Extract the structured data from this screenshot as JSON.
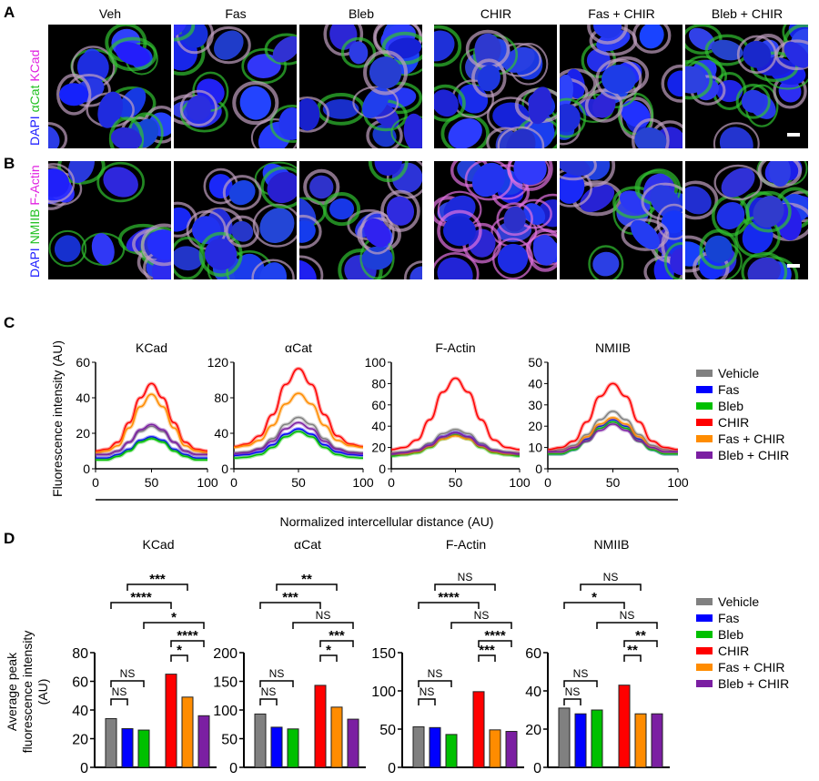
{
  "panels": {
    "a": "A",
    "b": "B",
    "c": "C",
    "d": "D"
  },
  "conditions": [
    "Veh",
    "Fas",
    "Bleb",
    "CHIR",
    "Fas + CHIR",
    "Bleb + CHIR"
  ],
  "row_a_label": [
    {
      "text": "DAPI",
      "color": "#2020ff"
    },
    {
      "text": " αCat",
      "color": "#20c020"
    },
    {
      "text": " KCad",
      "color": "#e020e0"
    }
  ],
  "row_b_label": [
    {
      "text": "DAPI",
      "color": "#2020ff"
    },
    {
      "text": " NMIIB",
      "color": "#20c020"
    },
    {
      "text": " F-Actin",
      "color": "#e020e0"
    }
  ],
  "legend": [
    {
      "name": "Vehicle",
      "color": "#808080"
    },
    {
      "name": "Fas",
      "color": "#0000ff"
    },
    {
      "name": "Bleb",
      "color": "#00c000"
    },
    {
      "name": "CHIR",
      "color": "#ff0000"
    },
    {
      "name": "Fas + CHIR",
      "color": "#ff8c00"
    },
    {
      "name": "Bleb + CHIR",
      "color": "#7b1fa2"
    }
  ],
  "chart_data": [
    {
      "type": "line",
      "panel": "C",
      "title": "KCad",
      "ylabel": "Fluorescence intensity (AU)",
      "xlabel": "Normalized intercellular distance (AU)",
      "xlim": [
        0,
        100
      ],
      "ylim": [
        0,
        60
      ],
      "xticks": [
        0,
        50,
        100
      ],
      "yticks": [
        0,
        20,
        40,
        60
      ],
      "x": [
        0,
        10,
        20,
        30,
        40,
        50,
        60,
        70,
        80,
        90,
        100
      ],
      "series": [
        {
          "name": "Vehicle",
          "values": [
            8,
            8,
            10,
            15,
            21,
            24,
            21,
            15,
            10,
            8,
            8
          ]
        },
        {
          "name": "Fas",
          "values": [
            6,
            6,
            8,
            11,
            16,
            18,
            16,
            11,
            8,
            6,
            6
          ]
        },
        {
          "name": "Bleb",
          "values": [
            5,
            5,
            7,
            10,
            15,
            17,
            15,
            10,
            7,
            5,
            5
          ]
        },
        {
          "name": "CHIR",
          "values": [
            10,
            11,
            15,
            26,
            40,
            48,
            40,
            26,
            15,
            11,
            10
          ]
        },
        {
          "name": "Fas + CHIR",
          "values": [
            9,
            10,
            13,
            23,
            35,
            42,
            35,
            23,
            13,
            10,
            9
          ]
        },
        {
          "name": "Bleb + CHIR",
          "values": [
            8,
            8,
            10,
            15,
            22,
            25,
            22,
            15,
            10,
            8,
            8
          ]
        }
      ]
    },
    {
      "type": "line",
      "panel": "C",
      "title": "αCat",
      "xlim": [
        0,
        100
      ],
      "ylim": [
        0,
        120
      ],
      "xticks": [
        0,
        50,
        100
      ],
      "yticks": [
        0,
        40,
        80,
        120
      ],
      "x": [
        0,
        10,
        20,
        30,
        40,
        50,
        60,
        70,
        80,
        90,
        100
      ],
      "series": [
        {
          "name": "Vehicle",
          "values": [
            18,
            19,
            23,
            34,
            50,
            58,
            50,
            34,
            23,
            19,
            18
          ]
        },
        {
          "name": "Fas",
          "values": [
            15,
            16,
            19,
            27,
            39,
            45,
            39,
            27,
            19,
            16,
            15
          ]
        },
        {
          "name": "Bleb",
          "values": [
            12,
            13,
            16,
            24,
            36,
            42,
            36,
            24,
            16,
            13,
            12
          ]
        },
        {
          "name": "CHIR",
          "values": [
            25,
            28,
            37,
            61,
            95,
            113,
            95,
            61,
            37,
            28,
            25
          ]
        },
        {
          "name": "Fas + CHIR",
          "values": [
            24,
            26,
            32,
            49,
            73,
            85,
            73,
            49,
            32,
            26,
            24
          ]
        },
        {
          "name": "Bleb + CHIR",
          "values": [
            17,
            18,
            22,
            31,
            45,
            52,
            45,
            31,
            22,
            18,
            17
          ]
        }
      ]
    },
    {
      "type": "line",
      "panel": "C",
      "title": "F-Actin",
      "xlim": [
        0,
        100
      ],
      "ylim": [
        0,
        100
      ],
      "xticks": [
        0,
        50,
        100
      ],
      "yticks": [
        0,
        20,
        40,
        60,
        80,
        100
      ],
      "x": [
        0,
        10,
        20,
        30,
        40,
        50,
        60,
        70,
        80,
        90,
        100
      ],
      "series": [
        {
          "name": "Vehicle",
          "values": [
            15,
            16,
            18,
            24,
            33,
            37,
            33,
            24,
            18,
            16,
            15
          ]
        },
        {
          "name": "Fas",
          "values": [
            13,
            14,
            16,
            22,
            30,
            34,
            30,
            22,
            16,
            14,
            13
          ]
        },
        {
          "name": "Bleb",
          "values": [
            12,
            13,
            15,
            20,
            28,
            32,
            28,
            20,
            15,
            13,
            12
          ]
        },
        {
          "name": "CHIR",
          "values": [
            18,
            20,
            27,
            46,
            72,
            85,
            72,
            46,
            27,
            20,
            18
          ]
        },
        {
          "name": "Fas + CHIR",
          "values": [
            14,
            14,
            16,
            21,
            28,
            31,
            28,
            21,
            16,
            14,
            14
          ]
        },
        {
          "name": "Bleb + CHIR",
          "values": [
            14,
            15,
            17,
            22,
            30,
            34,
            30,
            22,
            17,
            15,
            14
          ]
        }
      ]
    },
    {
      "type": "line",
      "panel": "C",
      "title": "NMIIB",
      "xlim": [
        0,
        100
      ],
      "ylim": [
        0,
        50
      ],
      "xticks": [
        0,
        50,
        100
      ],
      "yticks": [
        0,
        10,
        20,
        30,
        40,
        50
      ],
      "x": [
        0,
        10,
        20,
        30,
        40,
        50,
        60,
        70,
        80,
        90,
        100
      ],
      "series": [
        {
          "name": "Vehicle",
          "values": [
            8,
            9,
            11,
            16,
            23,
            27,
            23,
            16,
            11,
            9,
            8
          ]
        },
        {
          "name": "Fas",
          "values": [
            7,
            7,
            9,
            14,
            20,
            23,
            20,
            14,
            9,
            7,
            7
          ]
        },
        {
          "name": "Bleb",
          "values": [
            7,
            7,
            9,
            13,
            19,
            22,
            19,
            13,
            9,
            7,
            7
          ]
        },
        {
          "name": "CHIR",
          "values": [
            9,
            10,
            13,
            22,
            34,
            40,
            34,
            22,
            13,
            10,
            9
          ]
        },
        {
          "name": "Fas + CHIR",
          "values": [
            8,
            8,
            10,
            15,
            21,
            24,
            21,
            15,
            10,
            8,
            8
          ]
        },
        {
          "name": "Bleb + CHIR",
          "values": [
            8,
            8,
            10,
            13,
            18,
            21,
            18,
            13,
            10,
            8,
            8
          ]
        }
      ]
    },
    {
      "type": "bar",
      "panel": "D",
      "title": "KCad",
      "ylabel": "Average peak fluorescence intensity (AU)",
      "ylim": [
        0,
        80
      ],
      "yticks": [
        0,
        20,
        40,
        60,
        80
      ],
      "categories": [
        "Vehicle",
        "Fas",
        "Bleb",
        "CHIR",
        "Fas + CHIR",
        "Bleb + CHIR"
      ],
      "values": [
        34,
        27,
        26,
        65,
        49,
        36
      ],
      "comparisons": [
        {
          "pair": [
            1,
            4
          ],
          "label": "***"
        },
        {
          "pair": [
            0,
            3
          ],
          "label": "****"
        },
        {
          "pair": [
            2,
            5
          ],
          "label": "*"
        },
        {
          "pair": [
            3,
            5
          ],
          "label": "****"
        },
        {
          "pair": [
            3,
            4
          ],
          "label": "*"
        },
        {
          "pair": [
            0,
            2
          ],
          "label": "NS"
        },
        {
          "pair": [
            0,
            1
          ],
          "label": "NS"
        }
      ]
    },
    {
      "type": "bar",
      "panel": "D",
      "title": "αCat",
      "ylim": [
        0,
        200
      ],
      "yticks": [
        0,
        50,
        100,
        150,
        200
      ],
      "categories": [
        "Vehicle",
        "Fas",
        "Bleb",
        "CHIR",
        "Fas + CHIR",
        "Bleb + CHIR"
      ],
      "values": [
        93,
        70,
        67,
        143,
        105,
        84
      ],
      "comparisons": [
        {
          "pair": [
            1,
            4
          ],
          "label": "**"
        },
        {
          "pair": [
            0,
            3
          ],
          "label": "***"
        },
        {
          "pair": [
            2,
            5
          ],
          "label": "NS"
        },
        {
          "pair": [
            3,
            5
          ],
          "label": "***"
        },
        {
          "pair": [
            3,
            4
          ],
          "label": "*"
        },
        {
          "pair": [
            0,
            2
          ],
          "label": "NS"
        },
        {
          "pair": [
            0,
            1
          ],
          "label": "NS"
        }
      ]
    },
    {
      "type": "bar",
      "panel": "D",
      "title": "F-Actin",
      "ylim": [
        0,
        150
      ],
      "yticks": [
        0,
        50,
        100,
        150
      ],
      "categories": [
        "Vehicle",
        "Fas",
        "Bleb",
        "CHIR",
        "Fas + CHIR",
        "Bleb + CHIR"
      ],
      "values": [
        53,
        52,
        43,
        99,
        49,
        47
      ],
      "comparisons": [
        {
          "pair": [
            1,
            4
          ],
          "label": "NS"
        },
        {
          "pair": [
            0,
            3
          ],
          "label": "****"
        },
        {
          "pair": [
            2,
            5
          ],
          "label": "NS"
        },
        {
          "pair": [
            3,
            5
          ],
          "label": "****"
        },
        {
          "pair": [
            3,
            4
          ],
          "label": "***"
        },
        {
          "pair": [
            0,
            2
          ],
          "label": "NS"
        },
        {
          "pair": [
            0,
            1
          ],
          "label": "NS"
        }
      ]
    },
    {
      "type": "bar",
      "panel": "D",
      "title": "NMIIB",
      "ylim": [
        0,
        60
      ],
      "yticks": [
        0,
        20,
        40,
        60
      ],
      "categories": [
        "Vehicle",
        "Fas",
        "Bleb",
        "CHIR",
        "Fas + CHIR",
        "Bleb + CHIR"
      ],
      "values": [
        31,
        28,
        30,
        43,
        28,
        28
      ],
      "comparisons": [
        {
          "pair": [
            1,
            4
          ],
          "label": "NS"
        },
        {
          "pair": [
            0,
            3
          ],
          "label": "*"
        },
        {
          "pair": [
            2,
            5
          ],
          "label": "NS"
        },
        {
          "pair": [
            3,
            5
          ],
          "label": "**"
        },
        {
          "pair": [
            3,
            4
          ],
          "label": "**"
        },
        {
          "pair": [
            0,
            2
          ],
          "label": "NS"
        },
        {
          "pair": [
            0,
            1
          ],
          "label": "NS"
        }
      ]
    }
  ]
}
